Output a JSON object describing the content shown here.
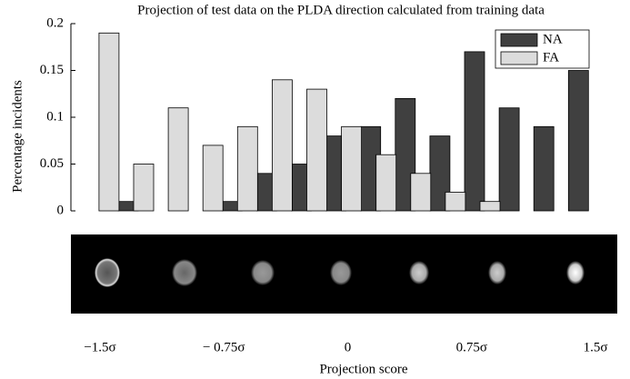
{
  "chart_data": {
    "type": "bar",
    "title": "Projection of test data on the PLDA direction calculated from training data",
    "ylabel": "Percentage incidents",
    "xlabel": "Projection score",
    "categories": [
      null,
      null,
      null,
      null,
      null,
      null,
      null,
      null,
      null,
      null,
      null,
      null,
      null,
      null,
      null
    ],
    "series": [
      {
        "name": "NA",
        "color": "#404040",
        "values": [
          0,
          0.01,
          0,
          0,
          0.01,
          0.04,
          0.05,
          0.08,
          0.09,
          0.12,
          0.08,
          0.17,
          0.11,
          0.09,
          0.15
        ]
      },
      {
        "name": "FA",
        "color": "#dcdcdc",
        "values": [
          0.19,
          0.05,
          0.11,
          0.07,
          0.09,
          0.14,
          0.13,
          0.09,
          0.06,
          0.04,
          0.02,
          0.01,
          0,
          0,
          0
        ]
      }
    ],
    "ylim": [
      0,
      0.2
    ],
    "yticks": [
      0,
      0.05,
      0.1,
      0.15,
      0.2
    ],
    "score_labels": [
      "−1.5σ",
      "− 0.75σ",
      "0",
      "0.75σ",
      "1.5σ"
    ],
    "legend": "upper right",
    "grid": false
  }
}
